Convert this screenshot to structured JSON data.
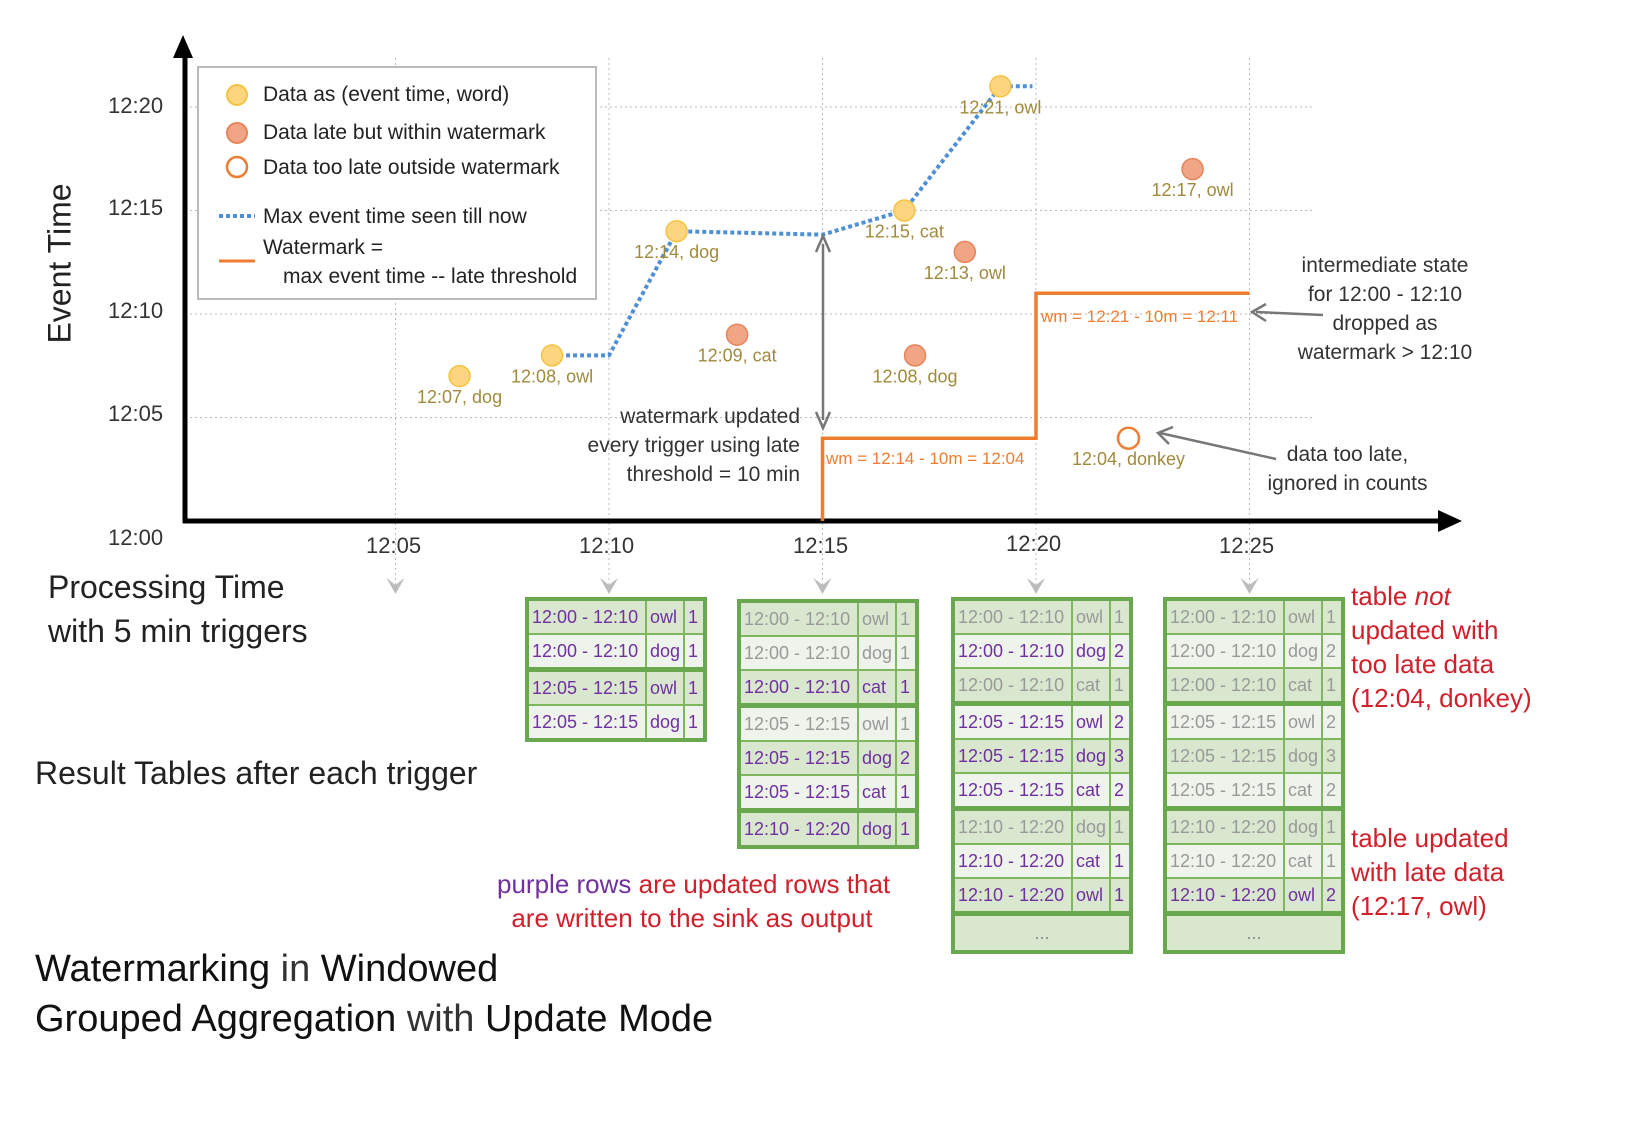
{
  "chart": {
    "y_axis_label": "Event Time",
    "x_axis_label_line1": "Processing Time",
    "x_axis_label_line2": "with 5 min triggers",
    "y_ticks": [
      "12:00",
      "12:05",
      "12:10",
      "12:15",
      "12:20"
    ],
    "x_ticks": [
      "12:05",
      "12:10",
      "12:15",
      "12:20",
      "12:25"
    ],
    "legend": {
      "on_time": "Data as (event time, word)",
      "late": "Data late but within watermark",
      "too_late": "Data too late outside watermark",
      "max_seen": "Max event time seen till now",
      "watermark_line1": "Watermark =",
      "watermark_line2": "max event time -- late threshold"
    },
    "colors": {
      "on_time": "#fdd57e",
      "late": "#f0a585",
      "too_late": "#ee7d31",
      "max_seen": "#4f8fd6",
      "watermark": "#ee7d31",
      "updated_rows": "#7030a0",
      "notes": "#d0202b",
      "table_border": "#6aa84f"
    },
    "points": [
      {
        "label": "12:07, dog",
        "kind": "on_time",
        "processing": "12:06:30",
        "event": "12:07"
      },
      {
        "label": "12:08, owl",
        "kind": "on_time",
        "processing": "12:08:40",
        "event": "12:08"
      },
      {
        "label": "12:14, dog",
        "kind": "on_time",
        "processing": "12:11:35",
        "event": "12:14"
      },
      {
        "label": "12:09, cat",
        "kind": "late",
        "processing": "12:13:00",
        "event": "12:09"
      },
      {
        "label": "12:15, cat",
        "kind": "on_time",
        "processing": "12:16:55",
        "event": "12:15"
      },
      {
        "label": "12:08, dog",
        "kind": "late",
        "processing": "12:17:10",
        "event": "12:08"
      },
      {
        "label": "12:13, owl",
        "kind": "late",
        "processing": "12:18:20",
        "event": "12:13"
      },
      {
        "label": "12:21, owl",
        "kind": "on_time",
        "processing": "12:19:10",
        "event": "12:21"
      },
      {
        "label": "12:04, donkey",
        "kind": "too_late",
        "processing": "12:22:10",
        "event": "12:04"
      },
      {
        "label": "12:17, owl",
        "kind": "late",
        "processing": "12:23:40",
        "event": "12:17"
      }
    ],
    "watermark_labels": [
      "wm = 12:14 - 10m = 12:04",
      "wm = 12:21 - 10m = 12:11"
    ],
    "annotations": {
      "wm_updated": [
        "watermark updated",
        "every trigger using late",
        "threshold = 10 min"
      ],
      "intermediate": [
        "intermediate state",
        "for 12:00 - 12:10",
        "dropped as",
        "watermark > 12:10"
      ],
      "too_late": [
        "data too late,",
        "ignored in counts"
      ]
    }
  },
  "result_tables_label": "Result Tables after each trigger",
  "tables": [
    {
      "rows": [
        {
          "window": "12:00 - 12:10",
          "word": "owl",
          "count": "1",
          "updated": true
        },
        {
          "window": "12:00 - 12:10",
          "word": "dog",
          "count": "1",
          "updated": true
        },
        {
          "window": "12:05 - 12:15",
          "word": "owl",
          "count": "1",
          "updated": true
        },
        {
          "window": "12:05 - 12:15",
          "word": "dog",
          "count": "1",
          "updated": true
        }
      ]
    },
    {
      "rows": [
        {
          "window": "12:00 - 12:10",
          "word": "owl",
          "count": "1",
          "updated": false
        },
        {
          "window": "12:00 - 12:10",
          "word": "dog",
          "count": "1",
          "updated": false
        },
        {
          "window": "12:00 - 12:10",
          "word": "cat",
          "count": "1",
          "updated": true
        },
        {
          "window": "12:05 - 12:15",
          "word": "owl",
          "count": "1",
          "updated": false
        },
        {
          "window": "12:05 - 12:15",
          "word": "dog",
          "count": "2",
          "updated": true
        },
        {
          "window": "12:05 - 12:15",
          "word": "cat",
          "count": "1",
          "updated": true
        },
        {
          "window": "12:10 - 12:20",
          "word": "dog",
          "count": "1",
          "updated": true
        }
      ]
    },
    {
      "more": "...",
      "rows": [
        {
          "window": "12:00 - 12:10",
          "word": "owl",
          "count": "1",
          "updated": false
        },
        {
          "window": "12:00 - 12:10",
          "word": "dog",
          "count": "2",
          "updated": true
        },
        {
          "window": "12:00 - 12:10",
          "word": "cat",
          "count": "1",
          "updated": false
        },
        {
          "window": "12:05 - 12:15",
          "word": "owl",
          "count": "2",
          "updated": true
        },
        {
          "window": "12:05 - 12:15",
          "word": "dog",
          "count": "3",
          "updated": true
        },
        {
          "window": "12:05 - 12:15",
          "word": "cat",
          "count": "2",
          "updated": true
        },
        {
          "window": "12:10 - 12:20",
          "word": "dog",
          "count": "1",
          "updated": false
        },
        {
          "window": "12:10 - 12:20",
          "word": "cat",
          "count": "1",
          "updated": true
        },
        {
          "window": "12:10 - 12:20",
          "word": "owl",
          "count": "1",
          "updated": true
        }
      ]
    },
    {
      "more": "...",
      "rows": [
        {
          "window": "12:00 - 12:10",
          "word": "owl",
          "count": "1",
          "updated": false
        },
        {
          "window": "12:00 - 12:10",
          "word": "dog",
          "count": "2",
          "updated": false
        },
        {
          "window": "12:00 - 12:10",
          "word": "cat",
          "count": "1",
          "updated": false
        },
        {
          "window": "12:05 - 12:15",
          "word": "owl",
          "count": "2",
          "updated": false
        },
        {
          "window": "12:05 - 12:15",
          "word": "dog",
          "count": "3",
          "updated": false
        },
        {
          "window": "12:05 - 12:15",
          "word": "cat",
          "count": "2",
          "updated": false
        },
        {
          "window": "12:10 - 12:20",
          "word": "dog",
          "count": "1",
          "updated": false
        },
        {
          "window": "12:10 - 12:20",
          "word": "cat",
          "count": "1",
          "updated": false
        },
        {
          "window": "12:10 - 12:20",
          "word": "owl",
          "count": "2",
          "updated": true
        }
      ]
    }
  ],
  "notes": {
    "not_updated": {
      "pre": "table ",
      "em": "not",
      "l2": "updated with",
      "l3": "too late data",
      "l4": "(12:04, donkey)"
    },
    "updated": [
      "table updated",
      "with late data",
      "(12:17, owl)"
    ],
    "purple_rows": {
      "purple": "purple rows",
      "rest": " are updated rows that",
      "line2": "are written to the sink as output"
    }
  },
  "title": {
    "w1": "Watermarking",
    "w2": " in ",
    "w3": "Windowed",
    "w4": "Grouped Aggregation",
    "w5": " with ",
    "w6": "Update Mode"
  }
}
